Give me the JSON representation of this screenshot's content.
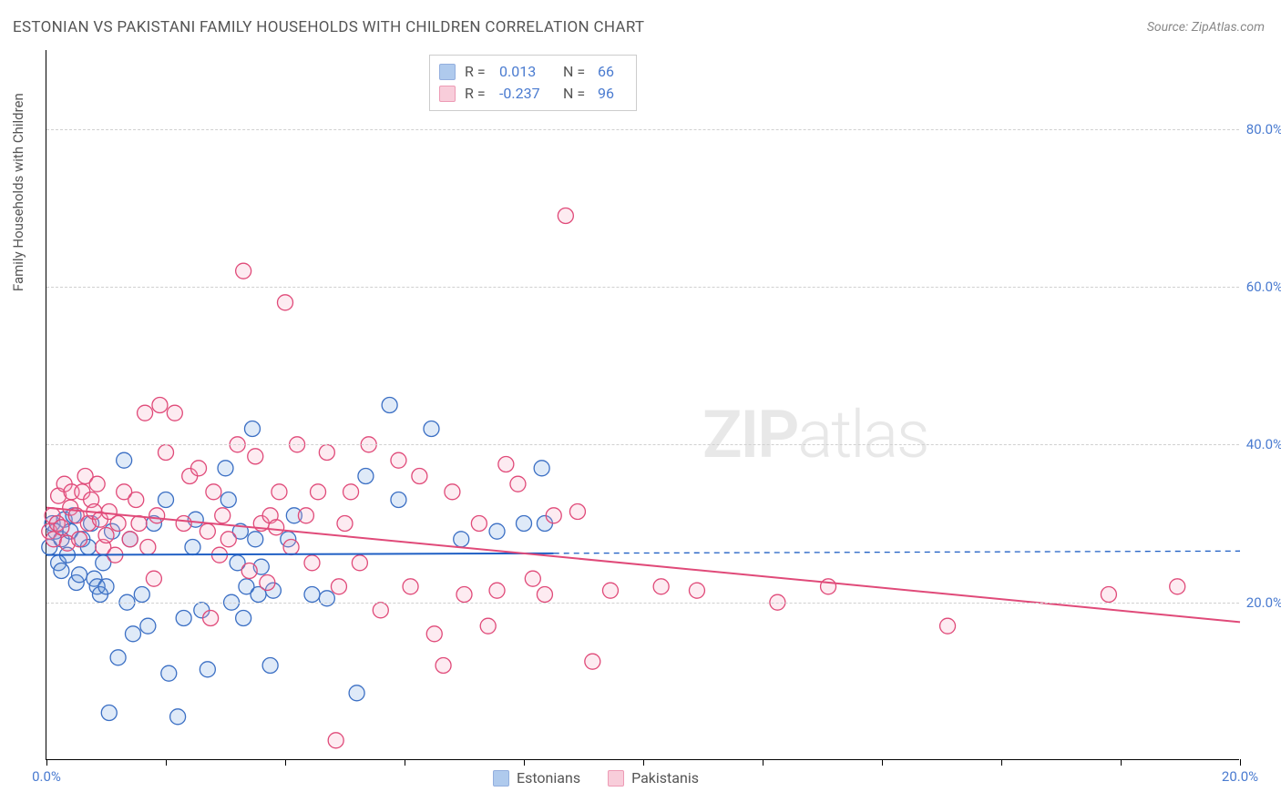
{
  "title": "ESTONIAN VS PAKISTANI FAMILY HOUSEHOLDS WITH CHILDREN CORRELATION CHART",
  "source_label": "Source:",
  "source_name": "ZipAtlas.com",
  "y_axis_label": "Family Households with Children",
  "watermark_a": "ZIP",
  "watermark_b": "atlas",
  "chart": {
    "type": "scatter",
    "background_color": "#ffffff",
    "grid_color": "#d0d0d0",
    "axis_color": "#000000",
    "xlim": [
      0,
      20
    ],
    "ylim": [
      0,
      90
    ],
    "x_ticks": [
      0,
      2,
      4,
      6,
      8,
      10,
      12,
      14,
      16,
      18,
      20
    ],
    "x_tick_labels": {
      "0": "0.0%",
      "20": "20.0%"
    },
    "y_ticks_labeled": [
      20,
      40,
      60,
      80
    ],
    "y_tick_labels": {
      "20": "20.0%",
      "40": "40.0%",
      "60": "60.0%",
      "80": "80.0%"
    },
    "marker_radius": 8.5,
    "marker_stroke_width": 1.3,
    "marker_fill_opacity": 0.22,
    "line_width": 2,
    "dashed_width": 1.3,
    "series": [
      {
        "name": "Estonians",
        "color_fill": "#6f9fe0",
        "color_stroke": "#3b6fc4",
        "line_color": "#1f5fc4",
        "R": "0.013",
        "N": "66",
        "regression": {
          "y_at_x0": 26.0,
          "y_at_x20": 26.5,
          "data_xmax": 8.5
        },
        "points": [
          [
            0.05,
            27
          ],
          [
            0.1,
            30
          ],
          [
            0.15,
            29
          ],
          [
            0.2,
            25
          ],
          [
            0.25,
            28
          ],
          [
            0.25,
            24
          ],
          [
            0.3,
            30.5
          ],
          [
            0.35,
            26
          ],
          [
            0.4,
            29
          ],
          [
            0.45,
            31
          ],
          [
            0.5,
            22.5
          ],
          [
            0.55,
            23.5
          ],
          [
            0.6,
            28
          ],
          [
            0.7,
            27
          ],
          [
            0.75,
            30
          ],
          [
            0.8,
            23
          ],
          [
            0.85,
            22
          ],
          [
            0.9,
            21
          ],
          [
            0.95,
            25
          ],
          [
            1.0,
            22
          ],
          [
            1.05,
            6
          ],
          [
            1.1,
            29
          ],
          [
            1.2,
            13
          ],
          [
            1.3,
            38
          ],
          [
            1.35,
            20
          ],
          [
            1.4,
            28
          ],
          [
            1.45,
            16
          ],
          [
            1.6,
            21
          ],
          [
            1.7,
            17
          ],
          [
            1.8,
            30
          ],
          [
            2.0,
            33
          ],
          [
            2.05,
            11
          ],
          [
            2.2,
            5.5
          ],
          [
            2.3,
            18
          ],
          [
            2.45,
            27
          ],
          [
            2.5,
            30.5
          ],
          [
            2.6,
            19
          ],
          [
            2.7,
            11.5
          ],
          [
            3.0,
            37
          ],
          [
            3.05,
            33
          ],
          [
            3.1,
            20
          ],
          [
            3.2,
            25
          ],
          [
            3.25,
            29
          ],
          [
            3.3,
            18
          ],
          [
            3.35,
            22
          ],
          [
            3.45,
            42
          ],
          [
            3.5,
            28
          ],
          [
            3.55,
            21
          ],
          [
            3.6,
            24.5
          ],
          [
            3.75,
            12
          ],
          [
            3.8,
            21.5
          ],
          [
            4.05,
            28
          ],
          [
            4.15,
            31
          ],
          [
            4.45,
            21
          ],
          [
            4.7,
            20.5
          ],
          [
            5.2,
            8.5
          ],
          [
            5.35,
            36
          ],
          [
            5.75,
            45
          ],
          [
            5.9,
            33
          ],
          [
            6.45,
            42
          ],
          [
            6.95,
            28
          ],
          [
            7.55,
            29
          ],
          [
            8.0,
            30
          ],
          [
            8.3,
            37
          ],
          [
            8.35,
            30
          ]
        ]
      },
      {
        "name": "Pakistanis",
        "color_fill": "#f4a6bd",
        "color_stroke": "#e04a79",
        "line_color": "#e04a79",
        "R": "-0.237",
        "N": "96",
        "regression": {
          "y_at_x0": 32.0,
          "y_at_x20": 17.5,
          "data_xmax": 20
        },
        "points": [
          [
            0.05,
            29
          ],
          [
            0.1,
            31
          ],
          [
            0.12,
            28
          ],
          [
            0.18,
            30
          ],
          [
            0.2,
            33.5
          ],
          [
            0.25,
            29.5
          ],
          [
            0.3,
            35
          ],
          [
            0.35,
            27.5
          ],
          [
            0.4,
            32
          ],
          [
            0.42,
            34
          ],
          [
            0.5,
            31
          ],
          [
            0.55,
            28
          ],
          [
            0.6,
            34
          ],
          [
            0.65,
            36
          ],
          [
            0.7,
            30
          ],
          [
            0.75,
            33
          ],
          [
            0.8,
            31.5
          ],
          [
            0.85,
            35
          ],
          [
            0.9,
            30.5
          ],
          [
            0.95,
            27
          ],
          [
            1.0,
            28.5
          ],
          [
            1.05,
            31.5
          ],
          [
            1.15,
            26
          ],
          [
            1.2,
            30
          ],
          [
            1.3,
            34
          ],
          [
            1.4,
            28
          ],
          [
            1.5,
            33
          ],
          [
            1.55,
            30
          ],
          [
            1.65,
            44
          ],
          [
            1.7,
            27
          ],
          [
            1.8,
            23
          ],
          [
            1.85,
            31
          ],
          [
            1.9,
            45
          ],
          [
            2.0,
            39
          ],
          [
            2.15,
            44
          ],
          [
            2.3,
            30
          ],
          [
            2.4,
            36
          ],
          [
            2.55,
            37
          ],
          [
            2.7,
            29
          ],
          [
            2.75,
            18
          ],
          [
            2.8,
            34
          ],
          [
            2.9,
            26
          ],
          [
            2.95,
            31
          ],
          [
            3.05,
            28
          ],
          [
            3.2,
            40
          ],
          [
            3.3,
            62
          ],
          [
            3.4,
            24
          ],
          [
            3.5,
            38.5
          ],
          [
            3.6,
            30
          ],
          [
            3.7,
            22.5
          ],
          [
            3.75,
            31
          ],
          [
            3.85,
            29.5
          ],
          [
            3.9,
            34
          ],
          [
            4.0,
            58
          ],
          [
            4.1,
            27
          ],
          [
            4.2,
            40
          ],
          [
            4.35,
            31
          ],
          [
            4.45,
            25
          ],
          [
            4.55,
            34
          ],
          [
            4.7,
            39
          ],
          [
            4.85,
            2.5
          ],
          [
            4.9,
            22
          ],
          [
            5.0,
            30
          ],
          [
            5.1,
            34
          ],
          [
            5.25,
            25
          ],
          [
            5.4,
            40
          ],
          [
            5.6,
            19
          ],
          [
            5.9,
            38
          ],
          [
            6.1,
            22
          ],
          [
            6.25,
            36
          ],
          [
            6.5,
            16
          ],
          [
            6.65,
            12
          ],
          [
            6.8,
            34
          ],
          [
            7.0,
            21
          ],
          [
            7.25,
            30
          ],
          [
            7.4,
            17
          ],
          [
            7.55,
            21.5
          ],
          [
            7.7,
            37.5
          ],
          [
            7.9,
            35
          ],
          [
            8.15,
            23
          ],
          [
            8.35,
            21
          ],
          [
            8.5,
            31
          ],
          [
            8.7,
            69
          ],
          [
            8.9,
            31.5
          ],
          [
            9.15,
            12.5
          ],
          [
            9.45,
            21.5
          ],
          [
            10.3,
            22
          ],
          [
            10.9,
            21.5
          ],
          [
            12.25,
            20
          ],
          [
            13.1,
            22
          ],
          [
            15.1,
            17
          ],
          [
            17.8,
            21
          ],
          [
            18.95,
            22
          ]
        ]
      }
    ]
  },
  "legend_corr": {
    "r_label": "R =",
    "n_label": "N ="
  },
  "legend_bottom": {
    "estonians": "Estonians",
    "pakistanis": "Pakistanis"
  }
}
